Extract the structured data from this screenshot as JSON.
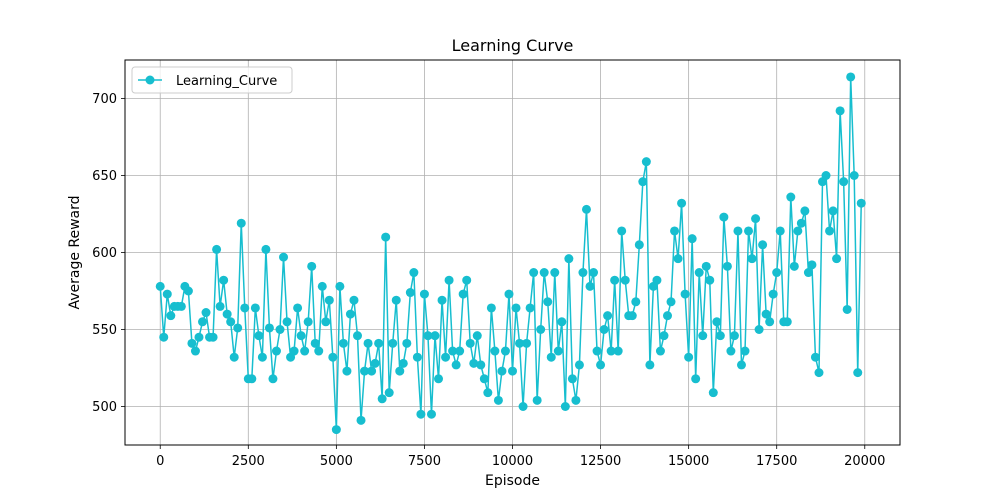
{
  "chart_data": {
    "type": "line",
    "title": "Learning Curve",
    "xlabel": "Episode",
    "ylabel": "Average Reward",
    "xlim": [
      -1000,
      21000
    ],
    "ylim": [
      475,
      725
    ],
    "xticks": [
      0,
      2500,
      5000,
      7500,
      10000,
      12500,
      15000,
      17500,
      20000
    ],
    "yticks": [
      500,
      550,
      600,
      650,
      700
    ],
    "grid": true,
    "legend_position": "top-left",
    "colors": {
      "series": "#17becf"
    },
    "series": [
      {
        "name": "Learning_Curve",
        "x": [
          0,
          100,
          200,
          300,
          400,
          500,
          600,
          700,
          800,
          900,
          1000,
          1100,
          1200,
          1300,
          1400,
          1500,
          1600,
          1700,
          1800,
          1900,
          2000,
          2100,
          2200,
          2300,
          2400,
          2500,
          2600,
          2700,
          2800,
          2900,
          3000,
          3100,
          3200,
          3300,
          3400,
          3500,
          3600,
          3700,
          3800,
          3900,
          4000,
          4100,
          4200,
          4300,
          4400,
          4500,
          4600,
          4700,
          4800,
          4900,
          5000,
          5100,
          5200,
          5300,
          5400,
          5500,
          5600,
          5700,
          5800,
          5900,
          6000,
          6100,
          6200,
          6300,
          6400,
          6500,
          6600,
          6700,
          6800,
          6900,
          7000,
          7100,
          7200,
          7300,
          7400,
          7500,
          7600,
          7700,
          7800,
          7900,
          8000,
          8100,
          8200,
          8300,
          8400,
          8500,
          8600,
          8700,
          8800,
          8900,
          9000,
          9100,
          9200,
          9300,
          9400,
          9500,
          9600,
          9700,
          9800,
          9900,
          10000,
          10100,
          10200,
          10300,
          10400,
          10500,
          10600,
          10700,
          10800,
          10900,
          11000,
          11100,
          11200,
          11300,
          11400,
          11500,
          11600,
          11700,
          11800,
          11900,
          12000,
          12100,
          12200,
          12300,
          12400,
          12500,
          12600,
          12700,
          12800,
          12900,
          13000,
          13100,
          13200,
          13300,
          13400,
          13500,
          13600,
          13700,
          13800,
          13900,
          14000,
          14100,
          14200,
          14300,
          14400,
          14500,
          14600,
          14700,
          14800,
          14900,
          15000,
          15100,
          15200,
          15300,
          15400,
          15500,
          15600,
          15700,
          15800,
          15900,
          16000,
          16100,
          16200,
          16300,
          16400,
          16500,
          16600,
          16700,
          16800,
          16900,
          17000,
          17100,
          17200,
          17300,
          17400,
          17500,
          17600,
          17700,
          17800,
          17900,
          18000,
          18100,
          18200,
          18300,
          18400,
          18500,
          18600,
          18700,
          18800,
          18900,
          19000,
          19100,
          19200,
          19300,
          19400,
          19500,
          19600,
          19700,
          19800,
          19900
        ],
        "y": [
          578,
          545,
          573,
          559,
          565,
          565,
          565,
          578,
          575,
          541,
          536,
          545,
          555,
          561,
          545,
          545,
          602,
          565,
          582,
          560,
          555,
          532,
          551,
          619,
          564,
          518,
          518,
          564,
          546,
          532,
          602,
          551,
          518,
          536,
          550,
          597,
          555,
          532,
          536,
          564,
          546,
          536,
          555,
          591,
          541,
          536,
          578,
          555,
          569,
          532,
          485,
          578,
          541,
          523,
          560,
          569,
          546,
          491,
          523,
          541,
          523,
          528,
          541,
          505,
          610,
          509,
          541,
          569,
          523,
          528,
          541,
          574,
          587,
          532,
          495,
          573,
          546,
          495,
          546,
          518,
          569,
          532,
          582,
          536,
          527,
          536,
          573,
          582,
          541,
          528,
          546,
          527,
          518,
          509,
          564,
          536,
          504,
          523,
          536,
          573,
          523,
          564,
          541,
          500,
          541,
          564,
          587,
          504,
          550,
          587,
          568,
          532,
          587,
          536,
          555,
          500,
          596,
          518,
          504,
          527,
          587,
          628,
          578,
          587,
          536,
          527,
          550,
          559,
          536,
          582,
          536,
          614,
          582,
          559,
          559,
          568,
          605,
          646,
          659,
          527,
          578,
          582,
          536,
          546,
          559,
          568,
          614,
          596,
          632,
          573,
          532,
          609,
          518,
          587,
          546,
          591,
          582,
          509,
          555,
          546,
          623,
          591,
          536,
          546,
          614,
          527,
          536,
          614,
          596,
          622,
          550,
          605,
          560,
          555,
          573,
          587,
          614,
          555,
          555,
          636,
          591,
          614,
          619,
          627,
          587,
          592,
          532,
          522,
          646,
          650,
          614,
          627,
          596,
          692,
          646,
          563,
          714,
          650,
          522,
          632
        ]
      }
    ]
  }
}
